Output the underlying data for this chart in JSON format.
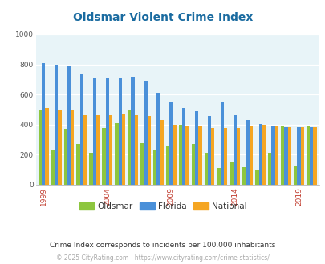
{
  "title": "Oldsmar Violent Crime Index",
  "title_color": "#1a6ba0",
  "subtitle": "Crime Index corresponds to incidents per 100,000 inhabitants",
  "footer": "© 2025 CityRating.com - https://www.cityrating.com/crime-statistics/",
  "years": [
    1999,
    2000,
    2001,
    2002,
    2003,
    2004,
    2005,
    2006,
    2007,
    2008,
    2009,
    2010,
    2011,
    2012,
    2013,
    2014,
    2015,
    2016,
    2017,
    2018,
    2019,
    2020
  ],
  "oldsmar": [
    500,
    235,
    370,
    270,
    215,
    380,
    410,
    500,
    275,
    235,
    260,
    400,
    270,
    215,
    110,
    155,
    115,
    100,
    215,
    390,
    125,
    390
  ],
  "florida": [
    810,
    800,
    785,
    740,
    710,
    710,
    715,
    720,
    690,
    610,
    545,
    510,
    490,
    455,
    545,
    465,
    430,
    405,
    390,
    385,
    385,
    385
  ],
  "national": [
    510,
    500,
    498,
    465,
    465,
    465,
    470,
    465,
    455,
    430,
    400,
    395,
    395,
    380,
    380,
    375,
    395,
    400,
    390,
    385,
    385,
    385
  ],
  "oldsmar_color": "#8dc63f",
  "florida_color": "#4a90d9",
  "national_color": "#f5a623",
  "bg_color": "#e8f4f8",
  "ylim": [
    0,
    1000
  ],
  "yticks": [
    0,
    200,
    400,
    600,
    800,
    1000
  ],
  "xtick_years": [
    1999,
    2004,
    2009,
    2014,
    2019
  ],
  "legend_labels": [
    "Oldsmar",
    "Florida",
    "National"
  ],
  "bar_width": 0.27,
  "figsize": [
    4.06,
    3.3
  ],
  "dpi": 100
}
